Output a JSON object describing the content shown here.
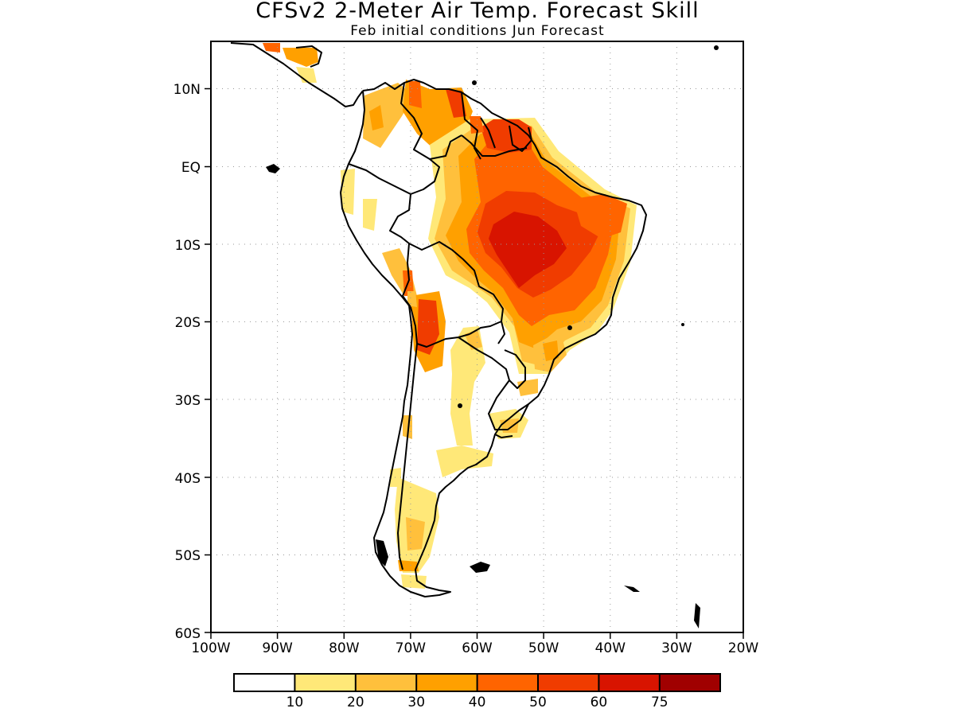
{
  "title": "CFSv2 2-Meter Air Temp. Forecast Skill",
  "subtitle": "Feb initial conditions  Jun Forecast",
  "lat_labels": [
    "10N",
    "EQ",
    "10S",
    "20S",
    "30S",
    "40S",
    "50S",
    "60S"
  ],
  "lon_labels": [
    "100W",
    "90W",
    "80W",
    "70W",
    "60W",
    "50W",
    "40W",
    "30W",
    "20W"
  ],
  "legend": {
    "thresholds": [
      "10",
      "20",
      "30",
      "40",
      "50",
      "60",
      "75"
    ],
    "colors": [
      "#ffffff",
      "#ffe878",
      "#ffc03c",
      "#ffa000",
      "#ff6400",
      "#f03c00",
      "#d81400",
      "#a00000"
    ]
  },
  "map_extent": {
    "lon": [
      -100,
      -20
    ],
    "lat": [
      -60,
      15
    ]
  },
  "chart_data": {
    "type": "heatmap",
    "title": "CFSv2 2-Meter Air Temp. Forecast Skill",
    "subtitle": "Feb initial conditions  Jun Forecast",
    "x_ticks": [
      "100W",
      "90W",
      "80W",
      "70W",
      "60W",
      "50W",
      "40W",
      "30W",
      "20W"
    ],
    "y_ticks": [
      "10N",
      "EQ",
      "10S",
      "20S",
      "30S",
      "40S",
      "50S",
      "60S"
    ],
    "xlim": [
      -100,
      -20
    ],
    "ylim": [
      -60,
      15
    ],
    "legend_bins": [
      10,
      20,
      30,
      40,
      50,
      60,
      75
    ],
    "highest_skill_region": "central Brazil (about 8S-16S, 50W-58W) at 60-75"
  }
}
